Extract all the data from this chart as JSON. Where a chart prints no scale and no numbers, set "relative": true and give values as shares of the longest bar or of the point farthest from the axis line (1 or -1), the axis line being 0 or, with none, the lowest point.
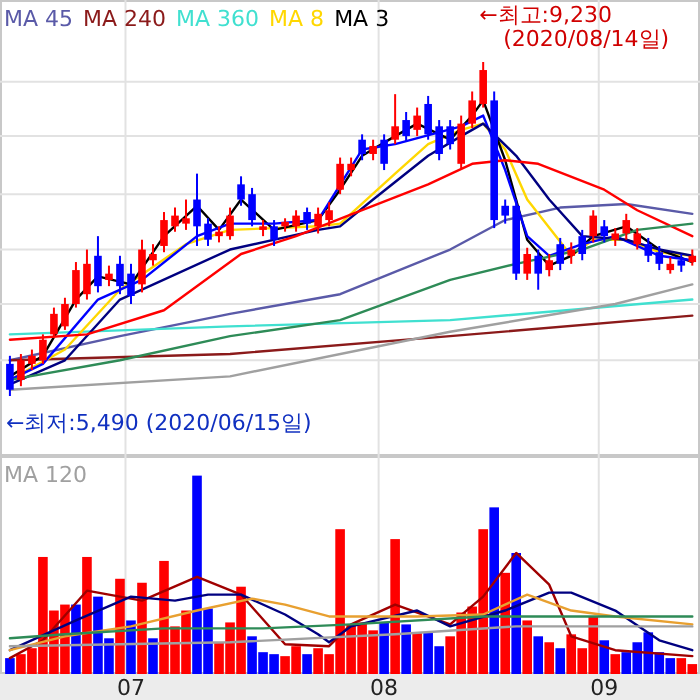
{
  "chart_data": [
    {
      "type": "candlestick",
      "categories": [
        null,
        null,
        null,
        null,
        null,
        null,
        null,
        null,
        null,
        null,
        null,
        "07",
        null,
        null,
        null,
        null,
        null,
        null,
        null,
        null,
        null,
        null,
        null,
        null,
        null,
        null,
        null,
        null,
        null,
        null,
        null,
        null,
        null,
        null,
        "08",
        null,
        null,
        null,
        null,
        null,
        null,
        null,
        null,
        null,
        null,
        null,
        null,
        null,
        null,
        null,
        null,
        null,
        null,
        null,
        "09",
        null,
        null,
        null,
        null,
        null,
        null,
        null,
        null
      ],
      "ohlc": [
        [
          5850,
          5940,
          5490,
          5560
        ],
        [
          5670,
          5960,
          5600,
          5890
        ],
        [
          5850,
          6010,
          5780,
          5940
        ],
        [
          5890,
          6180,
          5850,
          6120
        ],
        [
          6180,
          6480,
          6140,
          6410
        ],
        [
          6270,
          6590,
          6230,
          6520
        ],
        [
          6520,
          6990,
          6480,
          6900
        ],
        [
          6630,
          7130,
          6570,
          6970
        ],
        [
          7060,
          7280,
          6650,
          6720
        ],
        [
          6790,
          6950,
          6720,
          6860
        ],
        [
          6970,
          7060,
          6630,
          6720
        ],
        [
          6860,
          6970,
          6520,
          6610
        ],
        [
          6740,
          7240,
          6650,
          7130
        ],
        [
          7010,
          7190,
          6950,
          7080
        ],
        [
          7170,
          7550,
          7100,
          7460
        ],
        [
          7390,
          7600,
          7330,
          7510
        ],
        [
          7420,
          7690,
          7350,
          7480
        ],
        [
          7690,
          7980,
          7170,
          7390
        ],
        [
          7420,
          7480,
          7170,
          7240
        ],
        [
          7280,
          7390,
          7210,
          7330
        ],
        [
          7280,
          7600,
          7240,
          7510
        ],
        [
          7860,
          7950,
          7620,
          7690
        ],
        [
          7750,
          7820,
          7390,
          7460
        ],
        [
          7350,
          7460,
          7280,
          7390
        ],
        [
          7390,
          7460,
          7170,
          7240
        ],
        [
          7390,
          7480,
          7330,
          7440
        ],
        [
          7390,
          7570,
          7330,
          7510
        ],
        [
          7550,
          7600,
          7350,
          7420
        ],
        [
          7390,
          7600,
          7310,
          7530
        ],
        [
          7460,
          7660,
          7390,
          7570
        ],
        [
          7800,
          8160,
          7750,
          8090
        ],
        [
          8020,
          8160,
          7950,
          8090
        ],
        [
          8360,
          8420,
          8130,
          8200
        ],
        [
          8200,
          8360,
          8130,
          8290
        ],
        [
          8360,
          8420,
          8020,
          8090
        ],
        [
          8360,
          8870,
          8310,
          8510
        ],
        [
          8580,
          8670,
          8340,
          8400
        ],
        [
          8470,
          8720,
          8400,
          8630
        ],
        [
          8760,
          8850,
          8360,
          8420
        ],
        [
          8510,
          8580,
          8130,
          8200
        ],
        [
          8510,
          8580,
          8250,
          8310
        ],
        [
          8090,
          8630,
          8040,
          8540
        ],
        [
          8540,
          8900,
          8490,
          8800
        ],
        [
          8760,
          9230,
          8720,
          9140
        ],
        [
          8800,
          8900,
          7370,
          7460
        ],
        [
          7620,
          7690,
          7420,
          7510
        ],
        [
          7620,
          7690,
          6790,
          6860
        ],
        [
          6860,
          7150,
          6790,
          7080
        ],
        [
          7060,
          7130,
          6680,
          6860
        ],
        [
          6900,
          7080,
          6830,
          7010
        ],
        [
          7190,
          7260,
          6900,
          6970
        ],
        [
          7060,
          7210,
          6970,
          7130
        ],
        [
          7280,
          7350,
          7010,
          7080
        ],
        [
          7280,
          7570,
          7210,
          7510
        ],
        [
          7390,
          7460,
          7210,
          7280
        ],
        [
          7240,
          7370,
          7170,
          7310
        ],
        [
          7310,
          7530,
          7240,
          7460
        ],
        [
          7190,
          7370,
          7130,
          7310
        ],
        [
          7190,
          7260,
          6990,
          7060
        ],
        [
          7100,
          7170,
          6900,
          6970
        ],
        [
          6900,
          7040,
          6860,
          6970
        ],
        [
          7010,
          7080,
          6880,
          6950
        ],
        [
          6990,
          7130,
          6950,
          7060
        ]
      ],
      "colors": [
        "#0000ff",
        "#ff0000",
        "#ff0000",
        "#ff0000",
        "#ff0000",
        "#ff0000",
        "#ff0000",
        "#ff0000",
        "#0000ff",
        "#ff0000",
        "#0000ff",
        "#0000ff",
        "#ff0000",
        "#ff0000",
        "#ff0000",
        "#ff0000",
        "#ff0000",
        "#0000ff",
        "#0000ff",
        "#ff0000",
        "#ff0000",
        "#0000ff",
        "#0000ff",
        "#ff0000",
        "#0000ff",
        "#ff0000",
        "#ff0000",
        "#0000ff",
        "#ff0000",
        "#ff0000",
        "#ff0000",
        "#ff0000",
        "#0000ff",
        "#ff0000",
        "#0000ff",
        "#ff0000",
        "#0000ff",
        "#ff0000",
        "#0000ff",
        "#0000ff",
        "#0000ff",
        "#ff0000",
        "#ff0000",
        "#ff0000",
        "#0000ff",
        "#0000ff",
        "#0000ff",
        "#ff0000",
        "#0000ff",
        "#ff0000",
        "#0000ff",
        "#ff0000",
        "#0000ff",
        "#ff0000",
        "#0000ff",
        "#ff0000",
        "#ff0000",
        "#ff0000",
        "#0000ff",
        "#0000ff",
        "#ff0000",
        "#0000ff",
        "#ff0000"
      ],
      "series": [
        {
          "type": "line",
          "name": "MA 45",
          "color": "#5a5aa8",
          "values": [
            5890,
            null,
            null,
            null,
            null,
            null,
            null,
            null,
            null,
            null,
            6160,
            null,
            null,
            null,
            null,
            null,
            null,
            null,
            null,
            null,
            6410,
            null,
            null,
            null,
            null,
            null,
            null,
            null,
            null,
            null,
            6630,
            null,
            null,
            null,
            null,
            null,
            null,
            null,
            null,
            null,
            7130,
            null,
            null,
            null,
            null,
            7460,
            null,
            null,
            null,
            null,
            7600,
            null,
            null,
            null,
            null,
            null,
            7640,
            null,
            null,
            null,
            null,
            null,
            7530
          ]
        },
        {
          "type": "line",
          "name": "MA 240",
          "color": "#8b1a1a",
          "values": [
            5890,
            null,
            null,
            null,
            null,
            null,
            null,
            null,
            null,
            null,
            null,
            null,
            null,
            null,
            null,
            null,
            null,
            null,
            null,
            null,
            5960,
            null,
            null,
            null,
            null,
            null,
            null,
            null,
            null,
            null,
            null,
            null,
            null,
            null,
            null,
            null,
            null,
            null,
            null,
            null,
            6160,
            null,
            null,
            null,
            null,
            null,
            null,
            null,
            null,
            null,
            null,
            null,
            null,
            null,
            null,
            null,
            null,
            null,
            null,
            null,
            null,
            null,
            6390
          ]
        },
        {
          "type": "line",
          "name": "MA 360",
          "color": "#40e0d0",
          "values": [
            6180,
            null,
            null,
            null,
            null,
            null,
            null,
            null,
            null,
            null,
            null,
            null,
            null,
            null,
            null,
            null,
            null,
            null,
            null,
            null,
            6270,
            null,
            null,
            null,
            null,
            null,
            null,
            null,
            null,
            null,
            null,
            null,
            null,
            null,
            null,
            null,
            null,
            null,
            null,
            null,
            6340,
            null,
            null,
            null,
            null,
            null,
            null,
            null,
            null,
            null,
            null,
            null,
            null,
            null,
            null,
            null,
            null,
            null,
            null,
            null,
            null,
            null,
            6570
          ]
        },
        {
          "type": "line",
          "name": "MA 8",
          "color": "#ffd700",
          "values": [
            5670,
            null,
            null,
            null,
            null,
            6010,
            null,
            null,
            null,
            null,
            6680,
            null,
            null,
            null,
            null,
            null,
            7190,
            null,
            null,
            null,
            7350,
            null,
            null,
            null,
            7370,
            null,
            null,
            null,
            7390,
            null,
            7420,
            null,
            null,
            null,
            null,
            7980,
            null,
            null,
            8310,
            null,
            null,
            8470,
            null,
            8540,
            null,
            8250,
            null,
            7690,
            null,
            null,
            null,
            7060,
            null,
            7240,
            null,
            null,
            7240,
            null,
            null,
            7100,
            null,
            null,
            7060
          ]
        },
        {
          "type": "line",
          "name": "MA 3",
          "color": "#000000",
          "values": [
            5710,
            null,
            null,
            5940,
            null,
            null,
            6570,
            null,
            6830,
            null,
            null,
            6740,
            null,
            null,
            7280,
            null,
            null,
            7620,
            null,
            7350,
            null,
            7690,
            null,
            null,
            7350,
            null,
            null,
            null,
            7460,
            null,
            7800,
            null,
            8180,
            null,
            null,
            8400,
            null,
            8540,
            null,
            null,
            8360,
            null,
            8630,
            8800,
            null,
            8130,
            null,
            7240,
            null,
            6950,
            null,
            7060,
            null,
            7280,
            null,
            null,
            7390,
            null,
            null,
            7130,
            null,
            null,
            6990
          ]
        },
        {
          "type": "line",
          "color": "#0000ff",
          "values": [
            5670,
            null,
            null,
            5850,
            null,
            null,
            null,
            null,
            6570,
            null,
            null,
            null,
            6790,
            null,
            null,
            null,
            null,
            7280,
            null,
            null,
            7420,
            null,
            null,
            null,
            7420,
            null,
            null,
            null,
            7460,
            null,
            null,
            null,
            8250,
            null,
            null,
            8310,
            null,
            null,
            null,
            null,
            null,
            8510,
            null,
            8630,
            null,
            8020,
            null,
            7280,
            null,
            7060,
            null,
            null,
            7190,
            null,
            null,
            7280,
            null,
            null,
            null,
            7060,
            null,
            null,
            7010
          ]
        },
        {
          "type": "line",
          "color": "#000080",
          "values": [
            5620,
            null,
            null,
            null,
            null,
            5890,
            null,
            null,
            null,
            null,
            6570,
            null,
            null,
            null,
            null,
            null,
            null,
            null,
            null,
            null,
            7130,
            null,
            null,
            null,
            null,
            null,
            null,
            null,
            7350,
            null,
            7390,
            null,
            null,
            7690,
            null,
            null,
            null,
            null,
            8180,
            null,
            null,
            8400,
            null,
            8540,
            null,
            null,
            8180,
            null,
            null,
            7690,
            null,
            null,
            7280,
            null,
            null,
            null,
            7240,
            null,
            null,
            7130,
            null,
            null,
            7060
          ]
        },
        {
          "type": "line",
          "color": "#ff0000",
          "values": [
            6120,
            null,
            null,
            null,
            null,
            null,
            null,
            6180,
            null,
            null,
            null,
            null,
            null,
            null,
            6450,
            null,
            null,
            null,
            null,
            null,
            null,
            7080,
            null,
            null,
            null,
            null,
            7280,
            null,
            null,
            null,
            null,
            null,
            7570,
            null,
            null,
            null,
            null,
            null,
            7860,
            null,
            null,
            null,
            8090,
            null,
            null,
            8130,
            null,
            null,
            8090,
            null,
            null,
            null,
            null,
            null,
            7800,
            null,
            null,
            7570,
            null,
            null,
            null,
            null,
            7280
          ]
        },
        {
          "type": "line",
          "color": "#2e8b57",
          "values": [
            5670,
            null,
            null,
            null,
            null,
            null,
            null,
            null,
            null,
            null,
            5890,
            null,
            null,
            null,
            null,
            null,
            null,
            null,
            null,
            null,
            6160,
            null,
            null,
            null,
            null,
            null,
            null,
            null,
            null,
            null,
            6340,
            null,
            null,
            null,
            null,
            null,
            null,
            null,
            null,
            null,
            6790,
            null,
            null,
            null,
            null,
            null,
            6970,
            null,
            null,
            null,
            null,
            null,
            7130,
            null,
            null,
            null,
            null,
            7350,
            null,
            null,
            null,
            null,
            7420
          ]
        },
        {
          "type": "line",
          "color": "#a0a0a0",
          "values": [
            5560,
            null,
            null,
            null,
            null,
            null,
            null,
            null,
            null,
            null,
            null,
            null,
            null,
            null,
            null,
            null,
            null,
            null,
            null,
            null,
            5710,
            null,
            null,
            null,
            null,
            null,
            null,
            null,
            null,
            null,
            null,
            null,
            null,
            null,
            null,
            null,
            null,
            null,
            null,
            null,
            6210,
            null,
            null,
            null,
            null,
            null,
            null,
            null,
            null,
            null,
            null,
            null,
            null,
            null,
            null,
            6520,
            null,
            null,
            null,
            null,
            null,
            null,
            6740
          ]
        }
      ],
      "annotations": [
        "←최고:9,230 (2020/08/14일)",
        "←최저:5,490 (2020/06/15일)"
      ],
      "yticks": [
        {
          "value": 9010,
          "label": null
        },
        {
          "value": 8400,
          "label": null
        },
        {
          "value": 7750,
          "label": null
        },
        {
          "value": 7130,
          "label": null
        },
        {
          "value": 6520,
          "label": null
        },
        {
          "value": 5890,
          "label": null
        }
      ],
      "grid": true,
      "legend": "top left",
      "tick_labels": false
    },
    {
      "type": "bar",
      "relative": true,
      "categories": [
        null,
        null,
        null,
        null,
        null,
        null,
        null,
        null,
        null,
        null,
        null,
        "07",
        null,
        null,
        null,
        null,
        null,
        null,
        null,
        null,
        null,
        null,
        null,
        null,
        null,
        null,
        null,
        null,
        null,
        null,
        null,
        null,
        null,
        null,
        "08",
        null,
        null,
        null,
        null,
        null,
        null,
        null,
        null,
        null,
        null,
        null,
        null,
        null,
        null,
        null,
        null,
        null,
        null,
        null,
        "09",
        null,
        null,
        null,
        null,
        null,
        null,
        null,
        null
      ],
      "values": [
        0.08,
        0.1,
        0.13,
        0.59,
        0.32,
        0.35,
        0.35,
        0.59,
        0.39,
        0.18,
        0.48,
        0.27,
        0.46,
        0.18,
        0.57,
        0.24,
        0.32,
        1,
        0.33,
        0.16,
        0.26,
        0.44,
        0.19,
        0.11,
        0.1,
        0.09,
        0.14,
        0.1,
        0.13,
        0.1,
        0.73,
        0.25,
        0.26,
        0.22,
        0.26,
        0.68,
        0.25,
        0.21,
        0.21,
        0.14,
        0.19,
        0.31,
        0.34,
        0.73,
        0.84,
        0.51,
        0.61,
        0.27,
        0.19,
        0.16,
        0.13,
        0.2,
        0.13,
        0.29,
        0.17,
        0.1,
        0.11,
        0.16,
        0.21,
        0.11,
        0.08,
        0.08,
        0.05
      ],
      "colors": [
        "#0000ff",
        "#ff0000",
        "#ff0000",
        "#ff0000",
        "#ff0000",
        "#ff0000",
        "#0000ff",
        "#ff0000",
        "#0000ff",
        "#0000ff",
        "#ff0000",
        "#0000ff",
        "#ff0000",
        "#0000ff",
        "#ff0000",
        "#ff0000",
        "#ff0000",
        "#0000ff",
        "#0000ff",
        "#ff0000",
        "#ff0000",
        "#ff0000",
        "#0000ff",
        "#0000ff",
        "#0000ff",
        "#ff0000",
        "#ff0000",
        "#0000ff",
        "#ff0000",
        "#ff0000",
        "#ff0000",
        "#ff0000",
        "#ff0000",
        "#ff0000",
        "#0000ff",
        "#ff0000",
        "#0000ff",
        "#ff0000",
        "#0000ff",
        "#0000ff",
        "#ff0000",
        "#ff0000",
        "#ff0000",
        "#ff0000",
        "#0000ff",
        "#ff0000",
        "#0000ff",
        "#ff0000",
        "#0000ff",
        "#ff0000",
        "#0000ff",
        "#ff0000",
        "#ff0000",
        "#ff0000",
        "#0000ff",
        "#ff0000",
        "#0000ff",
        "#0000ff",
        "#0000ff",
        "#0000ff",
        "#0000ff",
        "#ff0000",
        "#ff0000"
      ],
      "series": [
        {
          "type": "line",
          "color": "#a00000",
          "values": [
            0.08,
            null,
            null,
            0.17,
            null,
            null,
            null,
            0.42,
            null,
            null,
            null,
            null,
            0.37,
            null,
            null,
            null,
            null,
            0.49,
            null,
            null,
            null,
            0.4,
            null,
            null,
            null,
            0.15,
            null,
            null,
            null,
            0.14,
            null,
            0.25,
            null,
            null,
            null,
            0.35,
            null,
            null,
            null,
            null,
            0.25,
            null,
            null,
            0.39,
            null,
            null,
            0.61,
            null,
            null,
            0.45,
            null,
            0.19,
            null,
            null,
            null,
            0.12,
            null,
            null,
            null,
            null,
            null,
            null,
            0.09
          ]
        },
        {
          "type": "line",
          "color": "#000080",
          "values": [
            0.12,
            null,
            null,
            null,
            null,
            null,
            0.27,
            null,
            null,
            null,
            null,
            0.39,
            null,
            null,
            null,
            0.37,
            null,
            null,
            0.4,
            null,
            null,
            0.4,
            null,
            null,
            null,
            0.3,
            null,
            null,
            0.2,
            0.16,
            null,
            0.24,
            null,
            null,
            null,
            null,
            null,
            0.32,
            null,
            null,
            0.24,
            null,
            null,
            null,
            null,
            0.32,
            null,
            null,
            null,
            0.41,
            null,
            0.41,
            null,
            null,
            null,
            0.32,
            null,
            null,
            null,
            0.17,
            null,
            null,
            0.12
          ]
        },
        {
          "type": "line",
          "color": "#e8a030",
          "values": [
            0.12,
            null,
            null,
            null,
            null,
            0.19,
            null,
            null,
            null,
            null,
            null,
            0.24,
            null,
            null,
            null,
            null,
            null,
            0.32,
            null,
            null,
            null,
            null,
            0.38,
            null,
            null,
            0.35,
            null,
            null,
            null,
            0.29,
            null,
            0.29,
            null,
            null,
            null,
            null,
            null,
            0.29,
            null,
            null,
            null,
            null,
            null,
            0.3,
            null,
            null,
            null,
            0.4,
            null,
            null,
            null,
            0.32,
            null,
            null,
            null,
            0.29,
            null,
            null,
            null,
            null,
            null,
            null,
            0.25
          ]
        },
        {
          "type": "line",
          "color": "#2e8b57",
          "values": [
            0.18,
            null,
            null,
            null,
            null,
            0.2,
            null,
            null,
            null,
            null,
            null,
            null,
            null,
            null,
            0.23,
            null,
            null,
            null,
            null,
            null,
            null,
            null,
            null,
            0.23,
            null,
            null,
            null,
            null,
            null,
            null,
            null,
            0.25,
            null,
            null,
            null,
            null,
            null,
            null,
            null,
            null,
            null,
            null,
            null,
            0.29,
            null,
            null,
            null,
            null,
            null,
            null,
            null,
            null,
            null,
            null,
            null,
            null,
            null,
            null,
            null,
            null,
            null,
            null,
            0.29
          ]
        },
        {
          "type": "line",
          "name": "MA 120",
          "color": "#a0a0a0",
          "values": [
            0.14,
            null,
            null,
            null,
            null,
            null,
            null,
            null,
            null,
            null,
            null,
            null,
            null,
            null,
            null,
            null,
            null,
            null,
            null,
            null,
            0.16,
            null,
            null,
            null,
            null,
            null,
            null,
            null,
            null,
            null,
            null,
            null,
            null,
            null,
            null,
            0.2,
            null,
            null,
            null,
            null,
            null,
            null,
            null,
            null,
            null,
            null,
            0.24,
            null,
            null,
            null,
            null,
            null,
            null,
            null,
            null,
            null,
            null,
            null,
            null,
            null,
            null,
            null,
            0.24
          ]
        }
      ],
      "grid": "x",
      "legend": "top left",
      "tick_labels": "x"
    }
  ]
}
